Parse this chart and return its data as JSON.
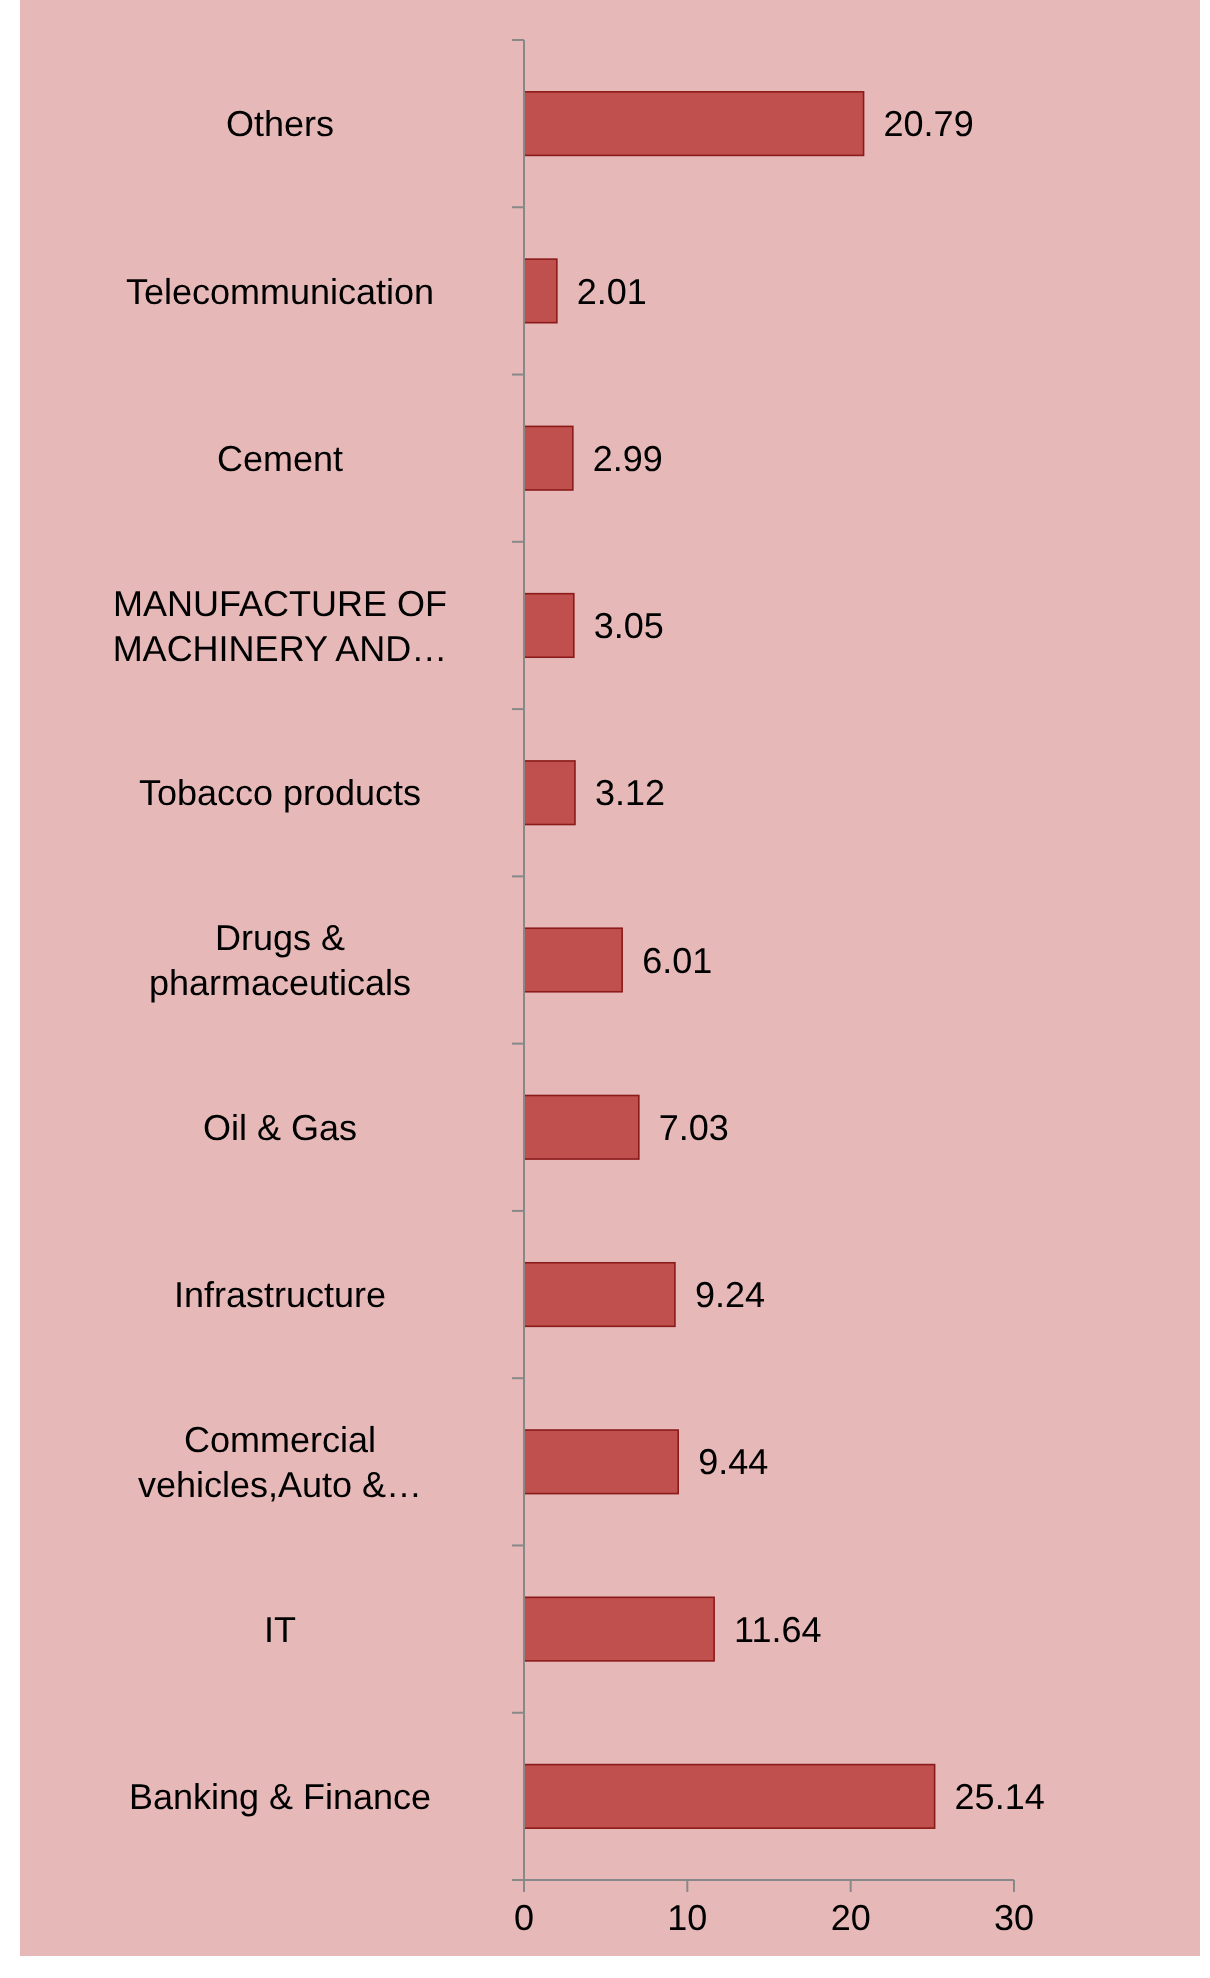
{
  "chart_data": {
    "type": "bar",
    "orientation": "horizontal",
    "categories": [
      "Others",
      "Telecommunication",
      "Cement",
      "MANUFACTURE OF MACHINERY AND…",
      "Tobacco products",
      "Drugs & pharmaceuticals",
      "Oil & Gas",
      "Infrastructure",
      "Commercial vehicles,Auto &…",
      "IT",
      "Banking & Finance"
    ],
    "values": [
      20.79,
      2.01,
      2.99,
      3.05,
      3.12,
      6.01,
      7.03,
      9.24,
      9.44,
      11.64,
      25.14
    ],
    "color": "#c0504d",
    "xlim": [
      0,
      30
    ],
    "xticks": [
      0,
      10,
      20,
      30
    ],
    "data_labels": true,
    "grid": false
  }
}
